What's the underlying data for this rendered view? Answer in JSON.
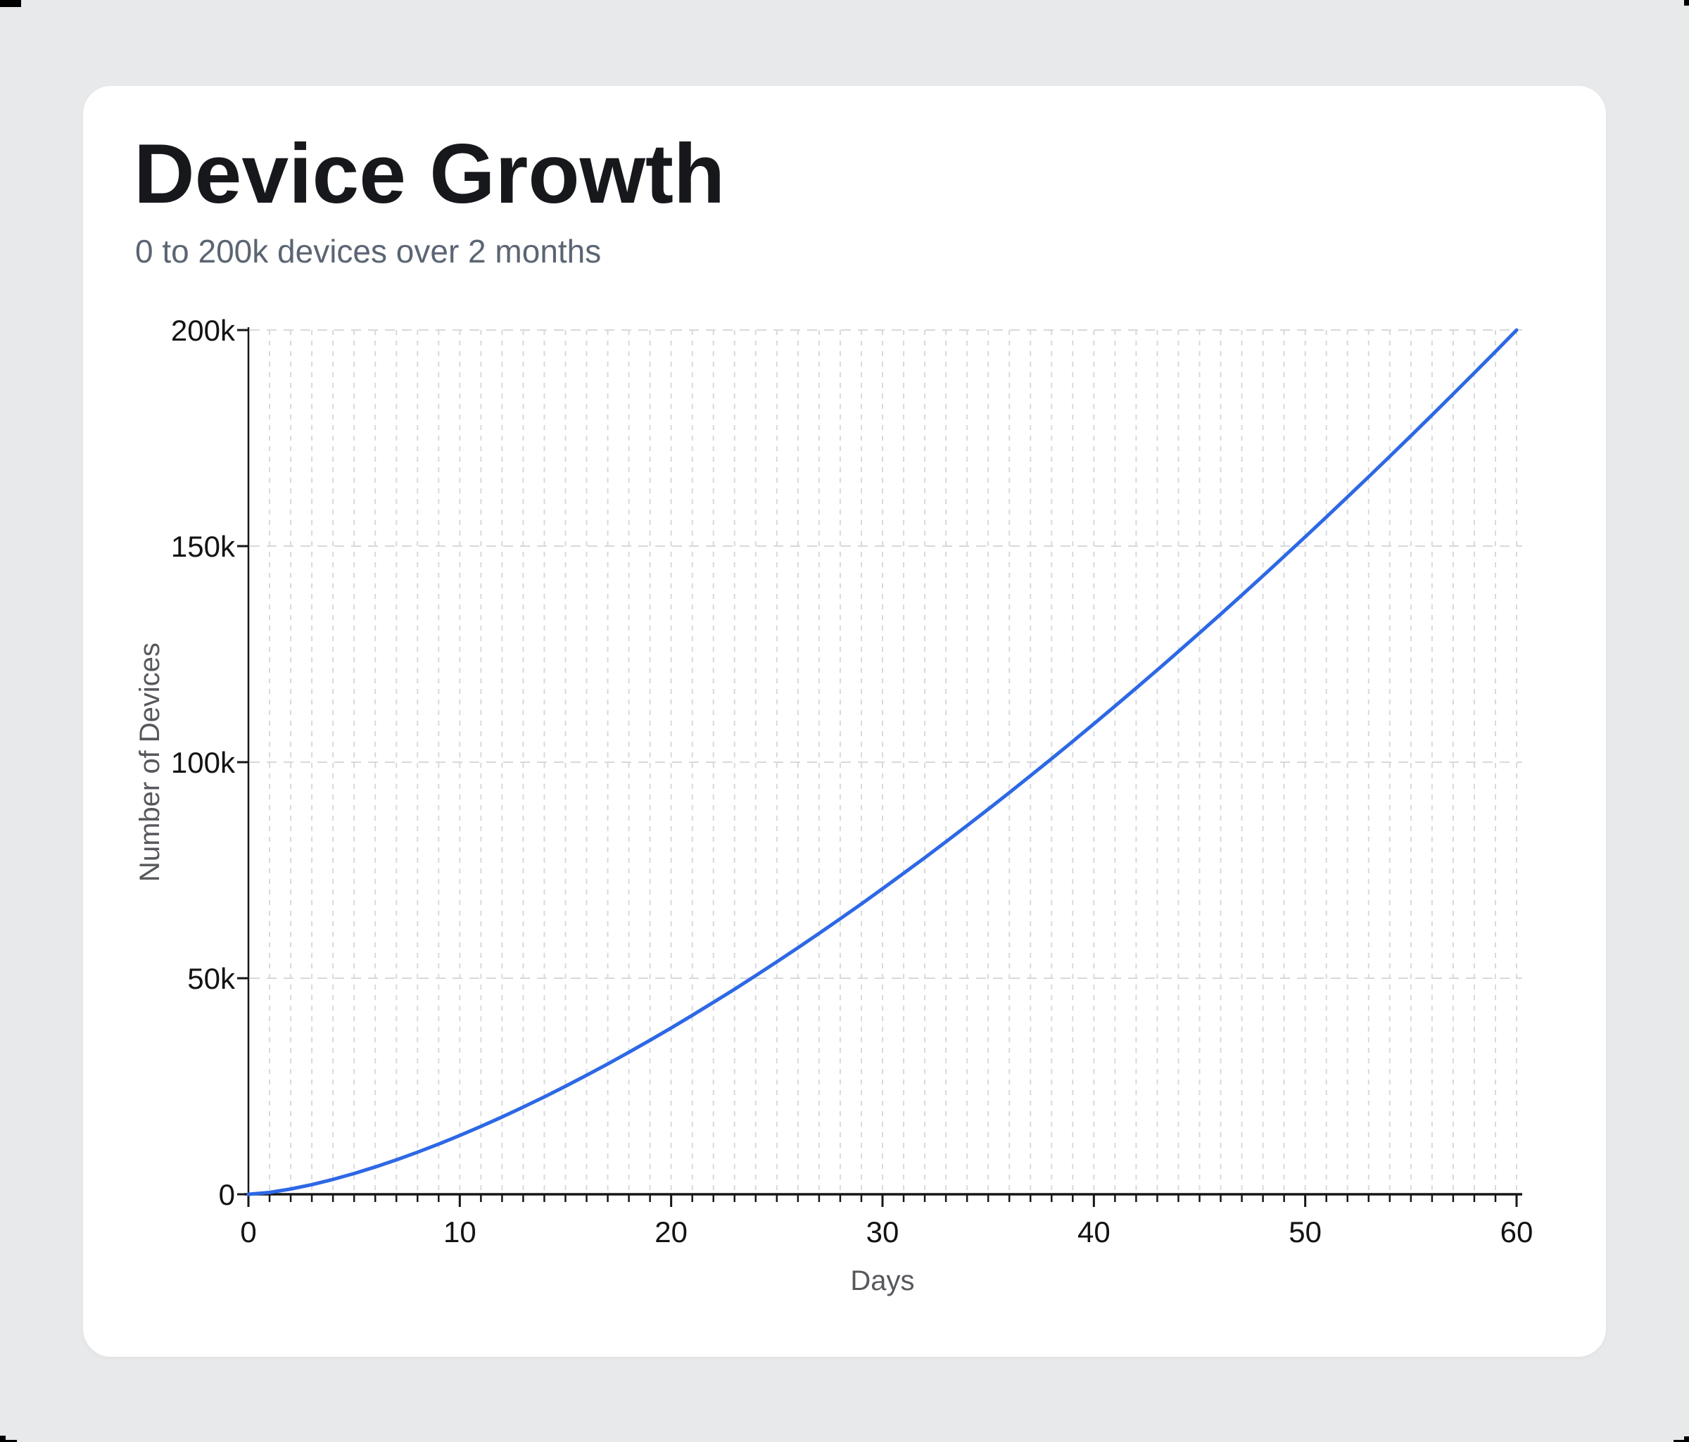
{
  "header": {
    "title": "Device Growth",
    "subtitle": "0 to 200k devices over 2 months",
    "title_color": "#16181c",
    "subtitle_color": "#5b6573"
  },
  "chart_data": {
    "type": "line",
    "title": "Device Growth",
    "subtitle": "0 to 200k devices over 2 months",
    "xlabel": "Days",
    "ylabel": "Number of Devices",
    "xlim": [
      0,
      60
    ],
    "ylim": [
      0,
      200000
    ],
    "grid": "dashed",
    "grid_color": "#d7d9da",
    "axis_color": "#161616",
    "tick_label_color": "#131313",
    "axis_title_color": "#56585c",
    "line_color": "#2d68e5",
    "line_width": 5,
    "x_ticks": {
      "values": [
        0,
        10,
        20,
        30,
        40,
        50,
        60
      ],
      "labels": [
        "0",
        "10",
        "20",
        "30",
        "40",
        "50",
        "60"
      ]
    },
    "y_ticks": {
      "values": [
        0,
        50000,
        100000,
        150000,
        200000
      ],
      "labels": [
        "0",
        "50k",
        "100k",
        "150k",
        "200k"
      ]
    },
    "minor_x_tick_step": 1,
    "legend": "none",
    "series": [
      {
        "name": "Devices",
        "x": [
          0,
          1,
          2,
          3,
          4,
          5,
          6,
          7,
          8,
          9,
          10,
          11,
          12,
          13,
          14,
          15,
          16,
          17,
          18,
          19,
          20,
          21,
          22,
          23,
          24,
          25,
          26,
          27,
          28,
          29,
          30,
          31,
          32,
          33,
          34,
          35,
          36,
          37,
          38,
          39,
          40,
          41,
          42,
          43,
          44,
          45,
          46,
          47,
          48,
          49,
          50,
          51,
          52,
          53,
          54,
          55,
          56,
          57,
          58,
          59,
          60
        ],
        "y": [
          0,
          430,
          1217,
          2236,
          3443,
          4811,
          6325,
          7970,
          9737,
          11619,
          13608,
          15699,
          17889,
          20173,
          22542,
          25000,
          27541,
          30163,
          32863,
          35642,
          38490,
          41413,
          44406,
          47467,
          50596,
          53792,
          57051,
          60374,
          63759,
          67205,
          70711,
          74276,
          77898,
          81578,
          85314,
          89106,
          92952,
          96851,
          100804,
          104809,
          108866,
          112974,
          117132,
          121341,
          125598,
          129904,
          134258,
          138660,
          143108,
          147603,
          152145,
          156732,
          161364,
          166042,
          170763,
          175528,
          180337,
          185189,
          190084,
          195021,
          200000
        ]
      }
    ]
  }
}
